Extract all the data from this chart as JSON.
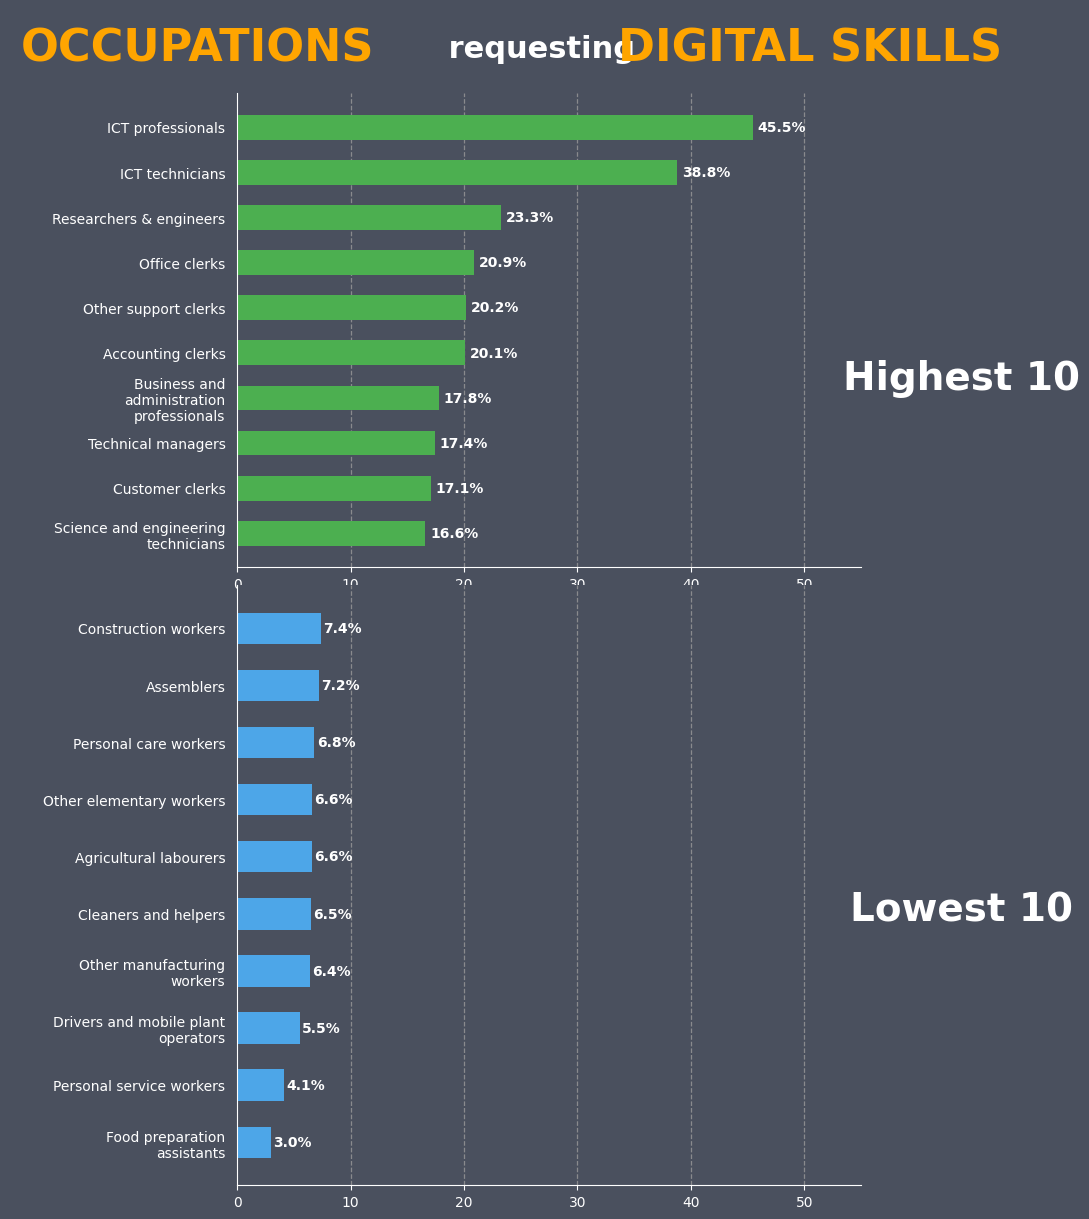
{
  "background_color": "#4a505e",
  "top_categories": [
    "ICT professionals",
    "ICT technicians",
    "Researchers & engineers",
    "Office clerks",
    "Other support clerks",
    "Accounting clerks",
    "Business and\nadministration\nprofessionals",
    "Technical managers",
    "Customer clerks",
    "Science and engineering\ntechnicians"
  ],
  "top_values": [
    45.5,
    38.8,
    23.3,
    20.9,
    20.2,
    20.1,
    17.8,
    17.4,
    17.1,
    16.6
  ],
  "top_color": "#4CAF50",
  "bottom_categories": [
    "Construction workers",
    "Assemblers",
    "Personal care workers",
    "Other elementary workers",
    "Agricultural labourers",
    "Cleaners and helpers",
    "Other manufacturing\nworkers",
    "Drivers and mobile plant\noperators",
    "Personal service workers",
    "Food preparation\nassistants"
  ],
  "bottom_values": [
    7.4,
    7.2,
    6.8,
    6.6,
    6.6,
    6.5,
    6.4,
    5.5,
    4.1,
    3.0
  ],
  "bottom_color": "#4DA6E8",
  "xlim": [
    0,
    55
  ],
  "xticks": [
    0,
    10,
    20,
    30,
    40,
    50
  ],
  "label_color": "#FFFFFF",
  "tick_label_color": "#FFFFFF",
  "grid_color": "#999999",
  "highest_label": "Highest 10",
  "lowest_label": "Lowest 10",
  "label_fontsize": 10,
  "value_fontsize": 10,
  "title_color_yellow": "#FFA500",
  "title_color_white": "#FFFFFF",
  "title_fontsize_large": 32,
  "title_fontsize_small": 22
}
